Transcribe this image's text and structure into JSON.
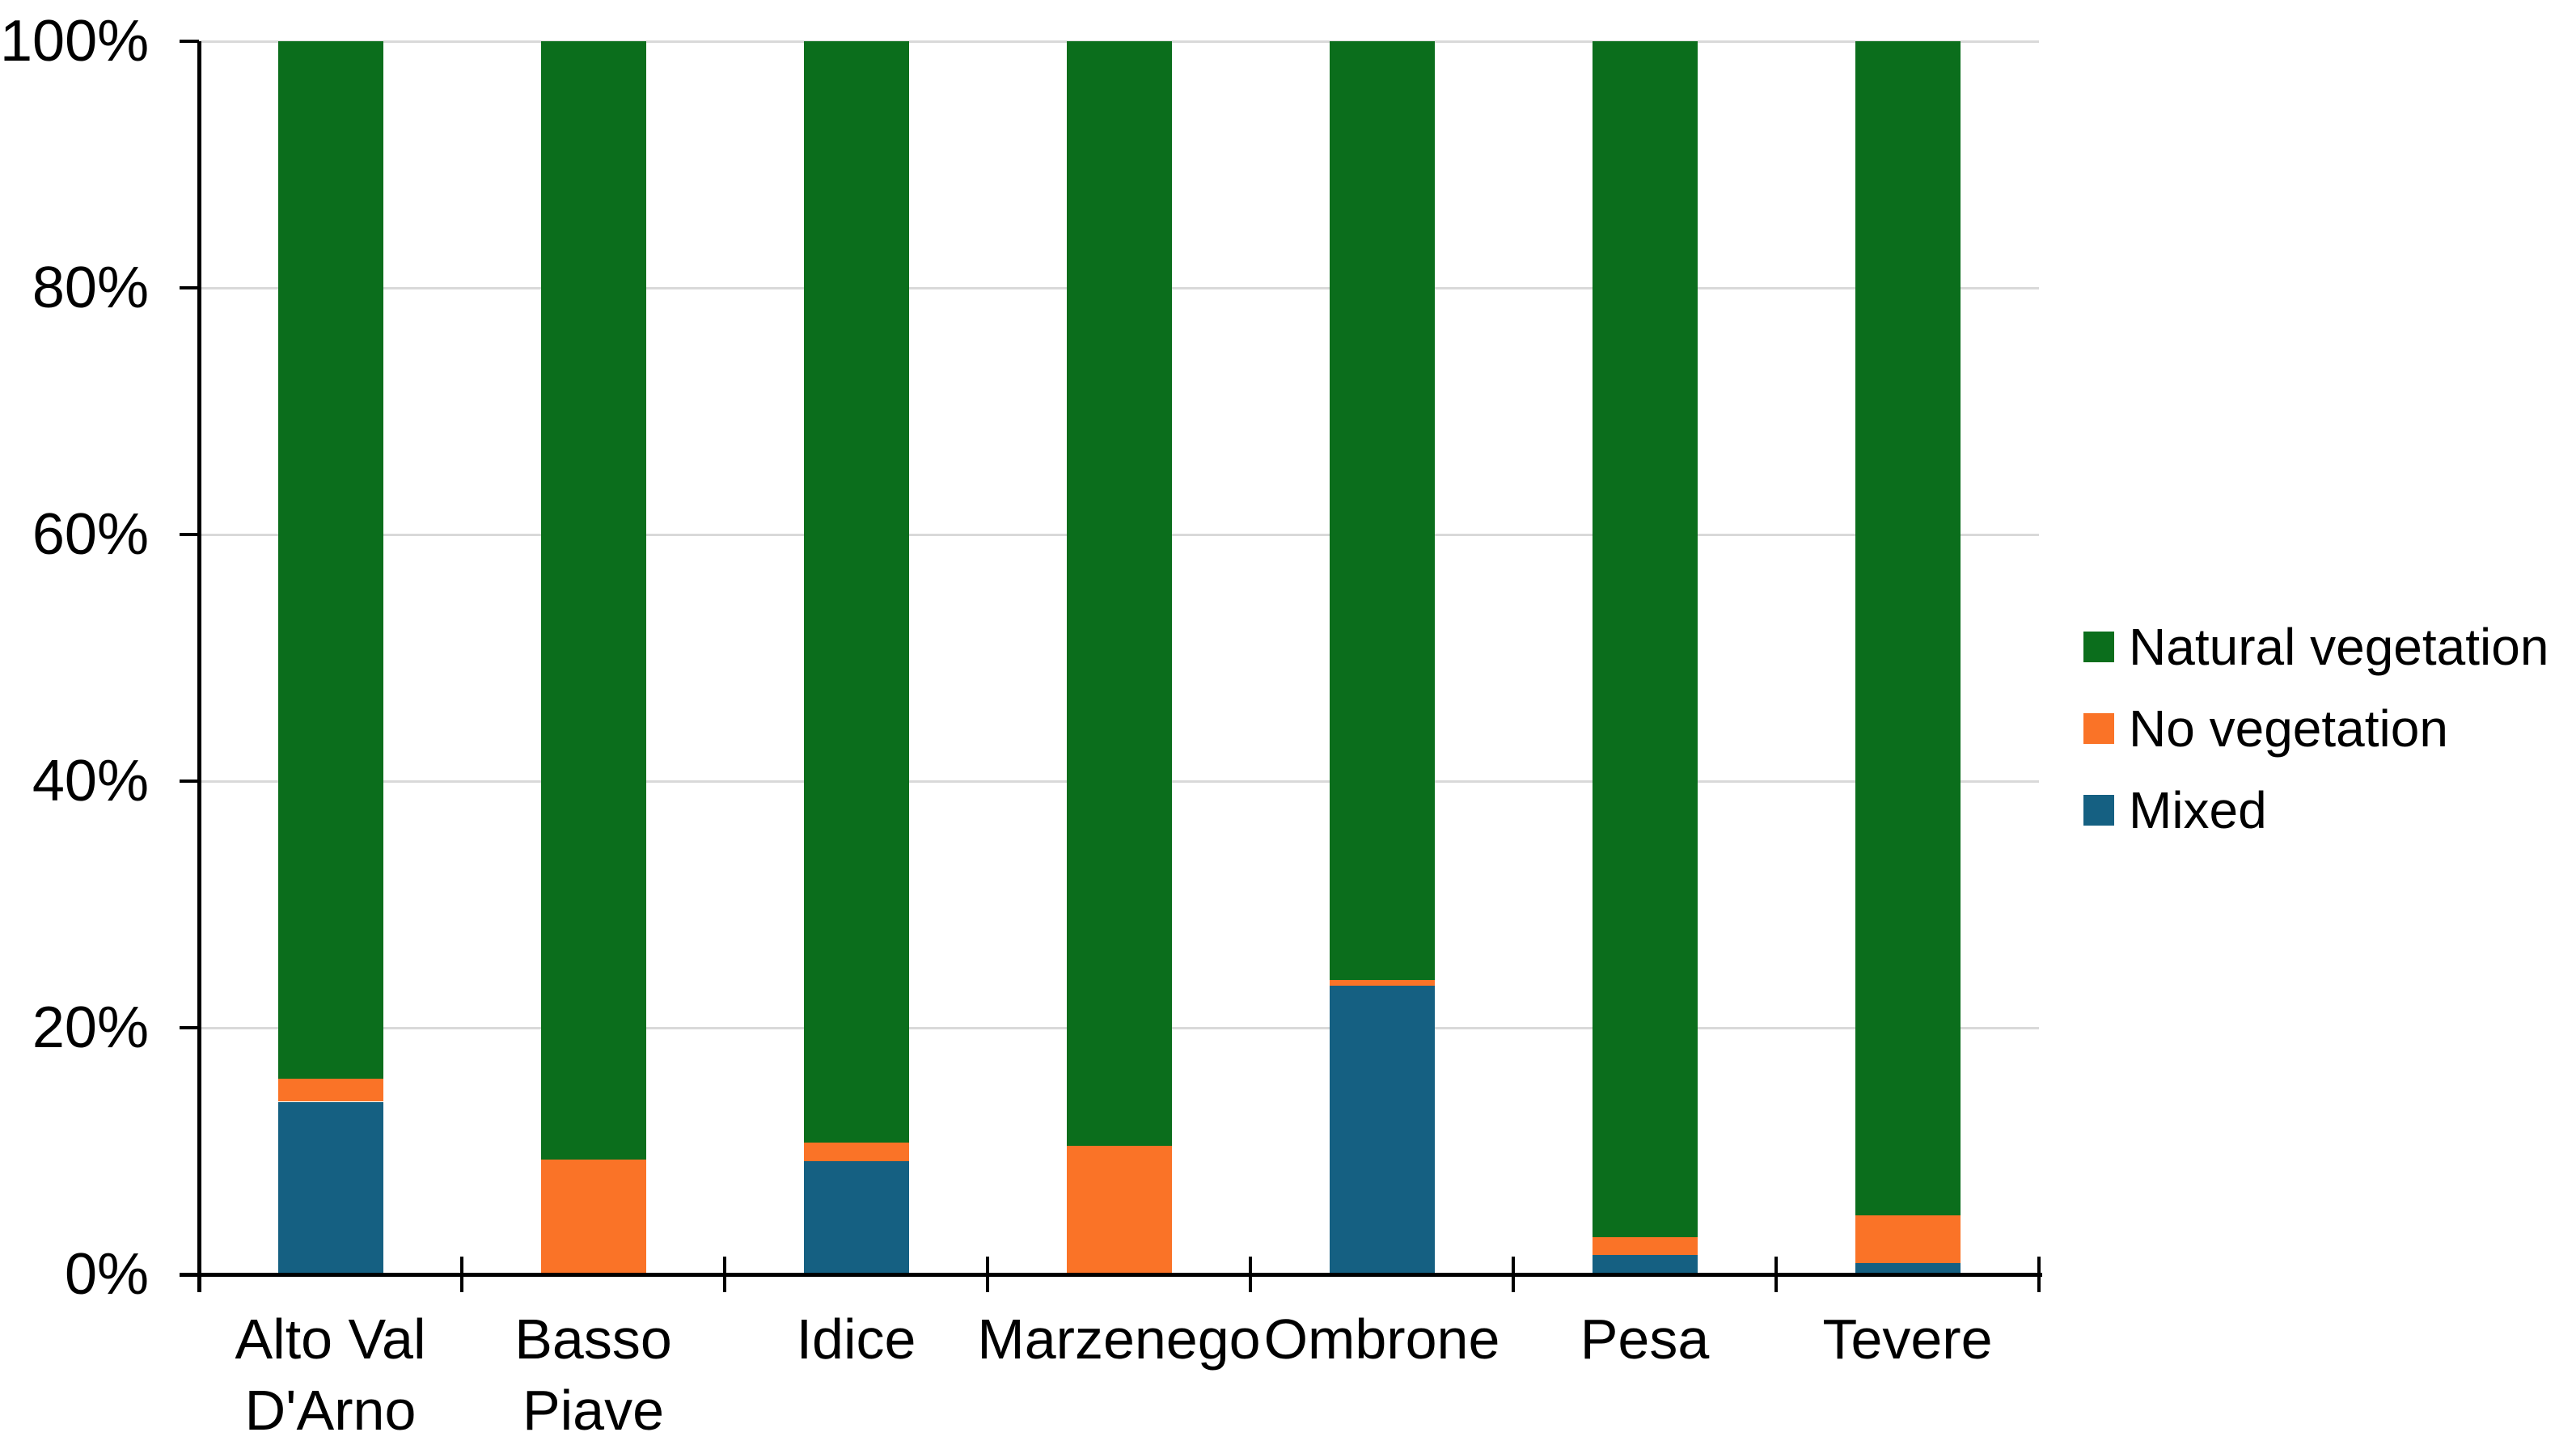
{
  "chart_data": {
    "type": "bar",
    "variant": "stacked-100-percent",
    "title": "",
    "xlabel": "",
    "ylabel": "",
    "ylim": [
      0,
      100
    ],
    "y_ticks": [
      "0%",
      "20%",
      "40%",
      "60%",
      "80%",
      "100%"
    ],
    "grid": true,
    "background": "#FFFFFF",
    "gridline_color": "#D9D9D9",
    "axis_color": "#000000",
    "text_color": "#000000",
    "categories": [
      "Alto Val\nD'Arno",
      "Basso\nPiave",
      "Idice",
      "Marzenego",
      "Ombrone",
      "Pesa",
      "Tevere"
    ],
    "series": [
      {
        "name": "Mixed",
        "color": "#156082",
        "values": [
          14.0,
          0,
          9.2,
          0,
          23.4,
          1.6,
          0.9
        ]
      },
      {
        "name": "No vegetation",
        "color": "#FA7327",
        "values": [
          1.9,
          9.3,
          1.5,
          10.4,
          0.5,
          1.4,
          3.9
        ]
      },
      {
        "name": "Natural vegetation",
        "color": "#0B6E1C",
        "values": [
          84.1,
          90.7,
          89.3,
          89.6,
          76.1,
          97.0,
          95.2
        ]
      }
    ],
    "legend_position": "right",
    "legend_order": [
      "Natural vegetation",
      "No vegetation",
      "Mixed"
    ]
  }
}
